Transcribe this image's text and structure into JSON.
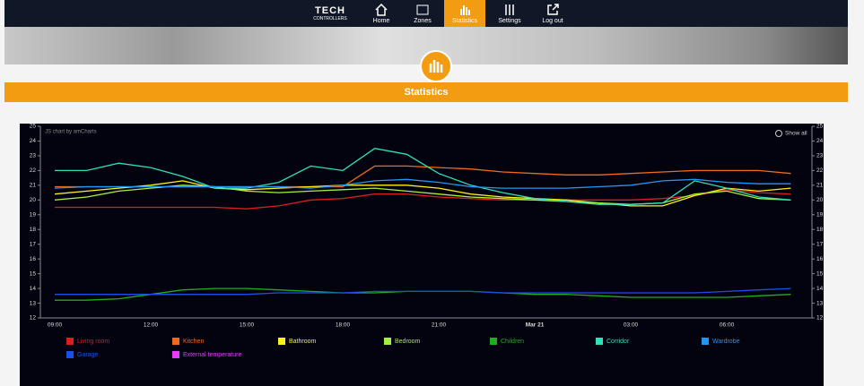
{
  "nav": {
    "brand": "TECH",
    "brand_sub": "CONTROLLERS",
    "items": [
      "Home",
      "Zones",
      "Statistics",
      "Settings",
      "Log out"
    ],
    "active": 2
  },
  "banner_title": "Statistics",
  "chart_data": {
    "type": "line",
    "credit": "JS chart by amCharts",
    "zoom_button": "Show all",
    "categories": [
      "09:00",
      null,
      null,
      "12:00",
      null,
      null,
      "15:00",
      null,
      null,
      "18:00",
      null,
      null,
      "21:00",
      null,
      null,
      "Mar 21",
      null,
      null,
      "03:00",
      null,
      null,
      "06:00",
      null,
      null
    ],
    "ylim": [
      12,
      25
    ],
    "yticks": [
      12,
      13,
      14,
      15,
      16,
      17,
      18,
      19,
      20,
      21,
      22,
      23,
      24,
      25
    ],
    "y2lim": [
      12,
      25
    ],
    "y2ticks": [
      12,
      13,
      14,
      15,
      16,
      17,
      18,
      19,
      20,
      21,
      22,
      23,
      24,
      25
    ],
    "grid": false,
    "series": [
      {
        "name": "Living room",
        "color": "#d61f1f",
        "values": [
          19.5,
          19.5,
          19.5,
          19.5,
          19.5,
          19.5,
          19.4,
          19.6,
          20.0,
          20.1,
          20.4,
          20.4,
          20.2,
          20.1,
          20.0,
          20.0,
          20.0,
          20.0,
          20.0,
          20.1,
          20.3,
          20.7,
          20.5,
          20.4
        ]
      },
      {
        "name": "Kitchen",
        "color": "#ef6a1d",
        "values": [
          20.9,
          20.9,
          20.9,
          20.9,
          20.9,
          20.9,
          20.9,
          20.9,
          20.9,
          20.9,
          22.3,
          22.3,
          22.2,
          22.1,
          21.9,
          21.8,
          21.7,
          21.7,
          21.8,
          21.9,
          22.0,
          22.0,
          22.0,
          21.8
        ]
      },
      {
        "name": "Bathroom",
        "color": "#ffef1a",
        "values": [
          20.4,
          20.6,
          20.8,
          21.0,
          21.3,
          20.8,
          20.7,
          20.8,
          20.9,
          21.0,
          21.0,
          21.0,
          20.8,
          20.4,
          20.2,
          20.1,
          20.0,
          19.8,
          19.6,
          19.6,
          20.3,
          20.8,
          20.6,
          20.8
        ]
      },
      {
        "name": "Bedroom",
        "color": "#a6f03a",
        "values": [
          20.0,
          20.2,
          20.6,
          20.8,
          21.0,
          20.9,
          20.6,
          20.5,
          20.6,
          20.7,
          20.8,
          20.6,
          20.4,
          20.2,
          20.1,
          20.0,
          19.9,
          19.8,
          19.7,
          19.8,
          20.4,
          20.6,
          20.1,
          20.0
        ]
      },
      {
        "name": "Children",
        "color": "#1fae1f",
        "values": [
          13.2,
          13.2,
          13.3,
          13.6,
          13.9,
          14.0,
          14.0,
          13.9,
          13.8,
          13.7,
          13.7,
          13.8,
          13.8,
          13.8,
          13.7,
          13.6,
          13.6,
          13.5,
          13.4,
          13.4,
          13.4,
          13.4,
          13.5,
          13.6
        ]
      },
      {
        "name": "Corridor",
        "color": "#2fe0b8",
        "values": [
          22.0,
          22.0,
          22.5,
          22.2,
          21.6,
          20.8,
          20.8,
          21.2,
          22.3,
          22.0,
          23.5,
          23.1,
          21.8,
          21.0,
          20.5,
          20.1,
          19.9,
          19.7,
          19.7,
          19.8,
          21.3,
          20.8,
          20.2,
          20.0
        ]
      },
      {
        "name": "Wardrobe",
        "color": "#2196f3",
        "values": [
          20.8,
          20.9,
          20.9,
          20.9,
          20.9,
          20.9,
          20.9,
          20.9,
          20.8,
          21.0,
          21.3,
          21.4,
          21.2,
          20.9,
          20.8,
          20.8,
          20.8,
          20.9,
          21.0,
          21.3,
          21.4,
          21.2,
          21.1,
          21.1
        ]
      },
      {
        "name": "Garage",
        "color": "#1c4fe8",
        "values": [
          13.6,
          13.6,
          13.6,
          13.6,
          13.6,
          13.6,
          13.6,
          13.7,
          13.7,
          13.7,
          13.8,
          13.8,
          13.8,
          13.8,
          13.7,
          13.7,
          13.7,
          13.7,
          13.7,
          13.7,
          13.7,
          13.8,
          13.9,
          14.0
        ]
      },
      {
        "name": "External temperature",
        "color": "#e040fb",
        "values": [
          null,
          null,
          null,
          null,
          null,
          null,
          null,
          null,
          null,
          null,
          null,
          null,
          null,
          null,
          null,
          null,
          null,
          null,
          null,
          null,
          null,
          null,
          null,
          null
        ]
      }
    ]
  }
}
